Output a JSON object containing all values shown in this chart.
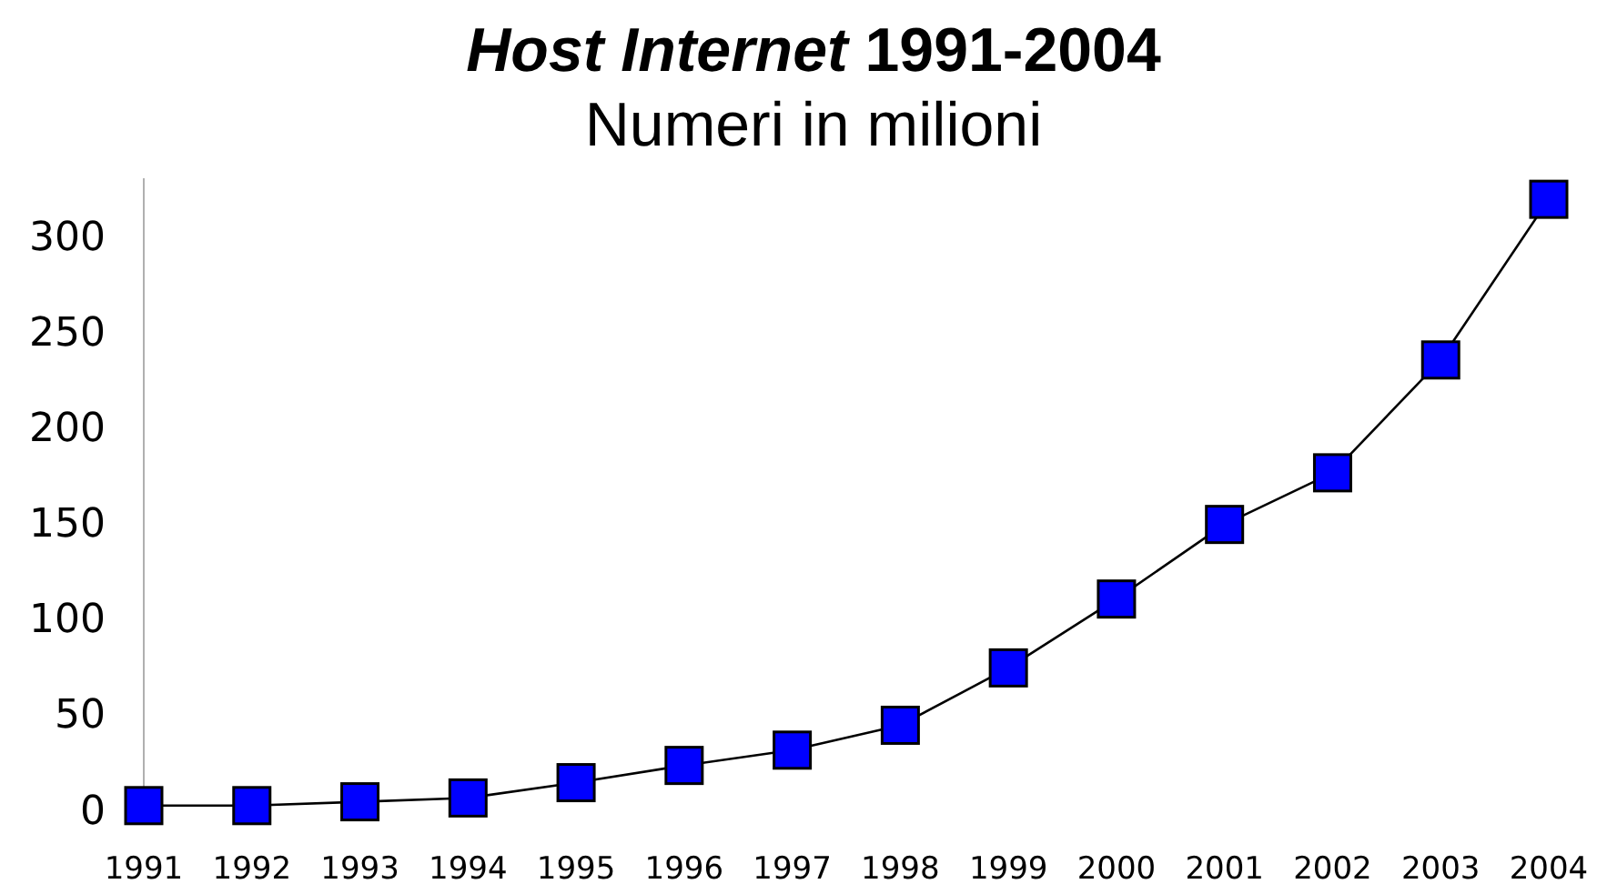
{
  "chart_data": {
    "type": "line",
    "title": "Host Internet 1991-2004",
    "subtitle": "Numeri in milioni",
    "categories": [
      "1991",
      "1992",
      "1993",
      "1994",
      "1995",
      "1996",
      "1997",
      "1998",
      "1999",
      "2000",
      "2001",
      "2002",
      "2003",
      "2004"
    ],
    "series": [
      {
        "color": "#0000ff",
        "values": [
          2,
          2,
          4,
          6,
          14,
          23,
          31,
          44,
          74,
          110,
          149,
          176,
          235,
          319
        ]
      }
    ],
    "ylim": [
      0,
      330
    ],
    "yticks": [
      0,
      50,
      100,
      150,
      200,
      250,
      300
    ],
    "marker": "square",
    "line_style": "solid"
  }
}
